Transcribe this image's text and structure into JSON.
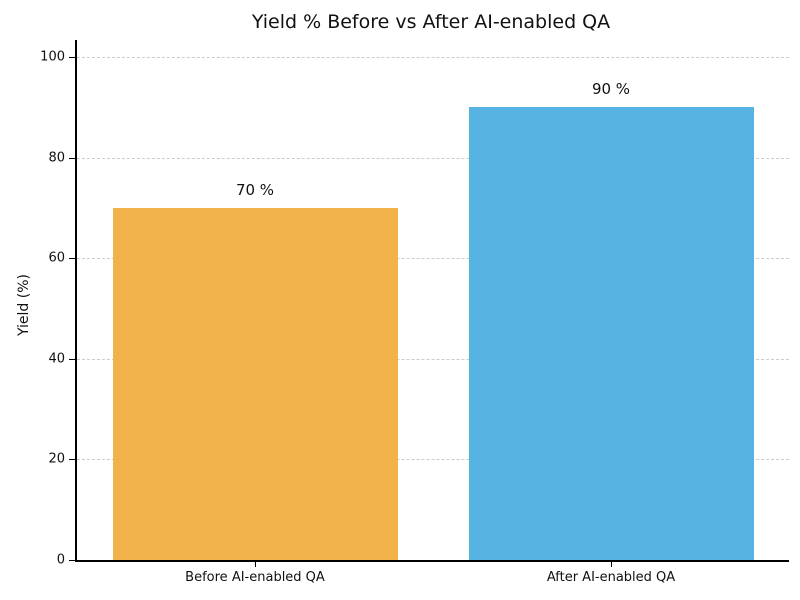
{
  "chart_data": {
    "type": "bar",
    "title": "Yield % Before vs After AI-enabled QA",
    "ylabel": "Yield (%)",
    "xlabel": "",
    "categories": [
      "Before AI-enabled QA",
      "After AI-enabled QA"
    ],
    "values": [
      70,
      90
    ],
    "bar_labels": [
      "70 %",
      "90 %"
    ],
    "bar_colors": [
      "#F2B24A",
      "#57B3E2"
    ],
    "yticks": [
      0,
      20,
      40,
      60,
      80,
      100
    ],
    "ylim": [
      0,
      103.4
    ],
    "grid": {
      "axis": "y",
      "style": "dashed",
      "color": "#CCCCCC"
    },
    "legend_position": "none",
    "background": "#FFFFFF"
  }
}
